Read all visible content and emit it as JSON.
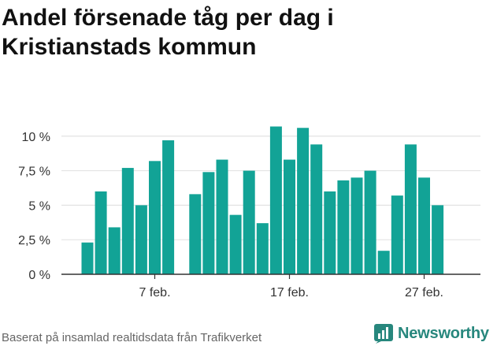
{
  "title_lines": [
    "Andel försenade tåg per dag i",
    "Kristianstads kommun"
  ],
  "footer": "Baserat på insamlad realtidsdata från Trafikverket",
  "brand": {
    "name": "Newsworthy",
    "icon": "newsworthy-logo-icon",
    "color": "#27877d"
  },
  "chart_data": {
    "type": "bar",
    "title": "Andel försenade tåg per dag i Kristianstads kommun",
    "xlabel": "",
    "ylabel": "",
    "ylim": [
      0,
      10.5
    ],
    "yticks": [
      0,
      2.5,
      5,
      7.5,
      10
    ],
    "ytick_labels": [
      "0 %",
      "2,5 %",
      "5 %",
      "7,5 %",
      "10 %"
    ],
    "xticks": [
      {
        "day": 7,
        "label": "7 feb."
      },
      {
        "day": 17,
        "label": "17 feb."
      },
      {
        "day": 27,
        "label": "27 feb."
      }
    ],
    "days": [
      2,
      3,
      4,
      5,
      6,
      7,
      8,
      10,
      11,
      12,
      13,
      14,
      15,
      16,
      17,
      18,
      19,
      20,
      21,
      22,
      23,
      24,
      25,
      26,
      27,
      28
    ],
    "values": [
      2.3,
      6.0,
      3.4,
      7.7,
      5.0,
      8.2,
      9.7,
      5.8,
      7.4,
      8.3,
      4.3,
      7.5,
      3.7,
      10.7,
      8.3,
      10.6,
      9.4,
      6.0,
      6.8,
      7.0,
      7.5,
      1.7,
      5.7,
      9.4,
      7.0,
      5.0
    ],
    "bar_color": "#12a396",
    "grid": true,
    "legend": "none"
  }
}
